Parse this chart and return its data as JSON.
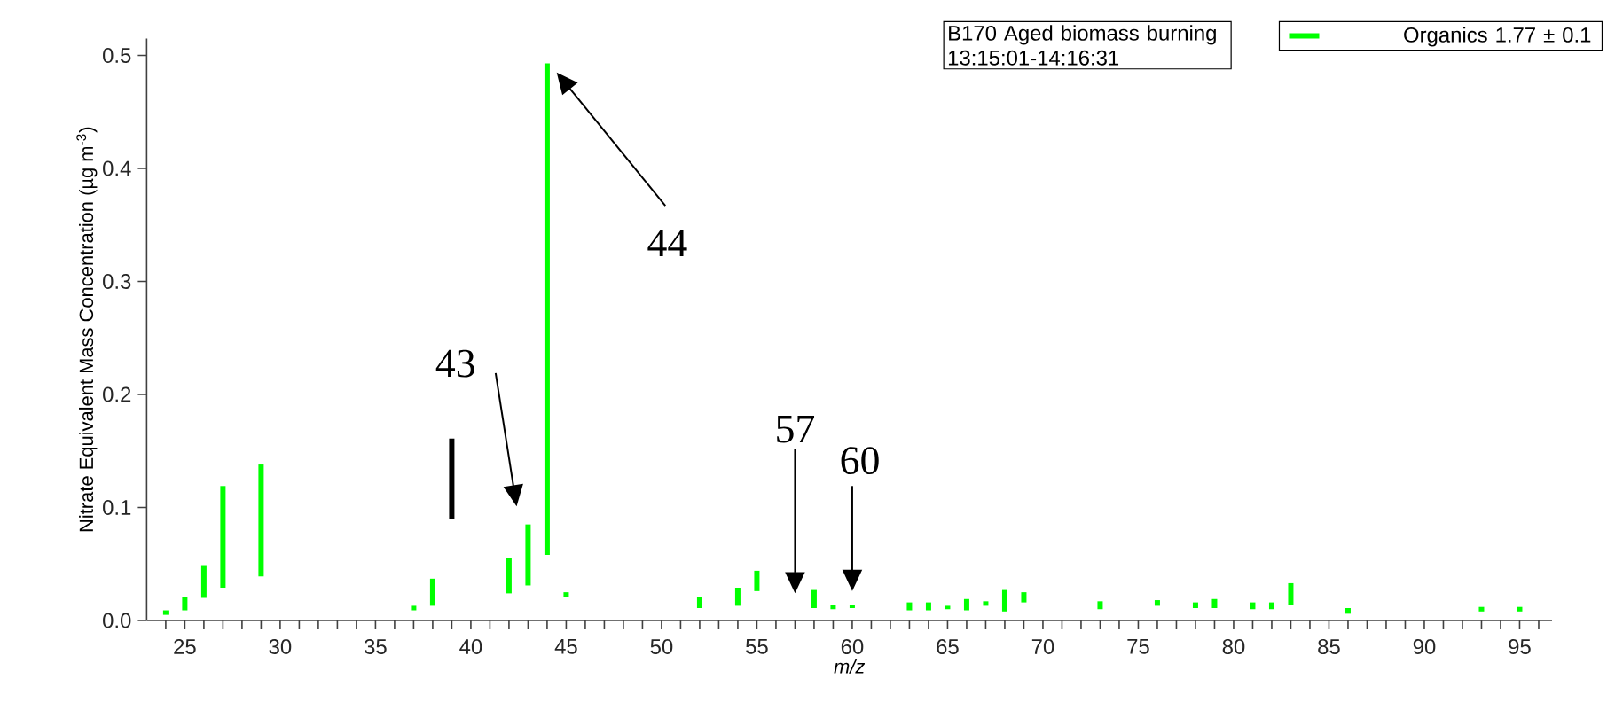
{
  "chart_data": {
    "type": "bar",
    "xlabel": "m/z",
    "ylabel": "Nitrate Equivalent Mass Concentration (µg m$^{-3}$)",
    "series": [
      {
        "name": "Organics 1.77 ± 0.1",
        "color": "#00ff00",
        "x": [
          24,
          25,
          26,
          27,
          29,
          37,
          38,
          42,
          43,
          44,
          45,
          52,
          54,
          55,
          58,
          59,
          60,
          63,
          64,
          65,
          66,
          67,
          68,
          69,
          73,
          76,
          78,
          79,
          81,
          82,
          83,
          86,
          93,
          95
        ],
        "base": [
          0.005,
          0.009,
          0.02,
          0.029,
          0.039,
          0.009,
          0.013,
          0.024,
          0.031,
          0.058,
          0.021,
          0.011,
          0.013,
          0.026,
          0.011,
          0.01,
          0.011,
          0.009,
          0.009,
          0.01,
          0.009,
          0.013,
          0.008,
          0.016,
          0.01,
          0.013,
          0.011,
          0.011,
          0.01,
          0.01,
          0.014,
          0.006,
          0.008,
          0.008
        ],
        "values": [
          0.004,
          0.012,
          0.029,
          0.09,
          0.099,
          0.004,
          0.024,
          0.031,
          0.054,
          0.435,
          0.004,
          0.01,
          0.016,
          0.018,
          0.016,
          0.004,
          0.003,
          0.007,
          0.007,
          0.003,
          0.01,
          0.004,
          0.019,
          0.009,
          0.007,
          0.005,
          0.005,
          0.008,
          0.006,
          0.006,
          0.019,
          0.005,
          0.004,
          0.004
        ]
      },
      {
        "color": "#000000",
        "x": [
          39
        ],
        "base": [
          0.09
        ],
        "values": [
          0.071
        ]
      }
    ],
    "xlim": [
      23,
      96.7
    ],
    "ylim": [
      0,
      0.515
    ],
    "xticks": [
      {
        "value": 24,
        "label": null
      },
      25,
      {
        "value": 26,
        "label": null
      },
      {
        "value": 27,
        "label": null
      },
      {
        "value": 28,
        "label": null
      },
      {
        "value": 29,
        "label": null
      },
      30,
      {
        "value": 31,
        "label": null
      },
      {
        "value": 32,
        "label": null
      },
      {
        "value": 33,
        "label": null
      },
      {
        "value": 34,
        "label": null
      },
      35,
      {
        "value": 36,
        "label": null
      },
      {
        "value": 37,
        "label": null
      },
      {
        "value": 38,
        "label": null
      },
      {
        "value": 39,
        "label": null
      },
      40,
      {
        "value": 41,
        "label": null
      },
      {
        "value": 42,
        "label": null
      },
      {
        "value": 43,
        "label": null
      },
      {
        "value": 44,
        "label": null
      },
      45,
      {
        "value": 46,
        "label": null
      },
      {
        "value": 47,
        "label": null
      },
      {
        "value": 48,
        "label": null
      },
      {
        "value": 49,
        "label": null
      },
      50,
      {
        "value": 51,
        "label": null
      },
      {
        "value": 52,
        "label": null
      },
      {
        "value": 53,
        "label": null
      },
      {
        "value": 54,
        "label": null
      },
      55,
      {
        "value": 56,
        "label": null
      },
      {
        "value": 57,
        "label": null
      },
      {
        "value": 58,
        "label": null
      },
      {
        "value": 59,
        "label": null
      },
      60,
      {
        "value": 61,
        "label": null
      },
      {
        "value": 62,
        "label": null
      },
      {
        "value": 63,
        "label": null
      },
      {
        "value": 64,
        "label": null
      },
      65,
      {
        "value": 66,
        "label": null
      },
      {
        "value": 67,
        "label": null
      },
      {
        "value": 68,
        "label": null
      },
      {
        "value": 69,
        "label": null
      },
      70,
      {
        "value": 71,
        "label": null
      },
      {
        "value": 72,
        "label": null
      },
      {
        "value": 73,
        "label": null
      },
      {
        "value": 74,
        "label": null
      },
      75,
      {
        "value": 76,
        "label": null
      },
      {
        "value": 77,
        "label": null
      },
      {
        "value": 78,
        "label": null
      },
      {
        "value": 79,
        "label": null
      },
      80,
      {
        "value": 81,
        "label": null
      },
      {
        "value": 82,
        "label": null
      },
      {
        "value": 83,
        "label": null
      },
      {
        "value": 84,
        "label": null
      },
      85,
      {
        "value": 86,
        "label": null
      },
      {
        "value": 87,
        "label": null
      },
      {
        "value": 88,
        "label": null
      },
      {
        "value": 89,
        "label": null
      },
      90,
      {
        "value": 91,
        "label": null
      },
      {
        "value": 92,
        "label": null
      },
      {
        "value": 93,
        "label": null
      },
      {
        "value": 94,
        "label": null
      },
      95,
      {
        "value": 96,
        "label": null
      }
    ],
    "yticks": [
      {
        "value": 0,
        "label": "0.0"
      },
      0.1,
      0.2,
      0.3,
      0.4,
      0.5
    ],
    "legend": "top right",
    "annotations": [
      "B170 Aged biomass burning\n13:15:01-14:16:31",
      "43",
      "44",
      "57",
      "60"
    ]
  }
}
